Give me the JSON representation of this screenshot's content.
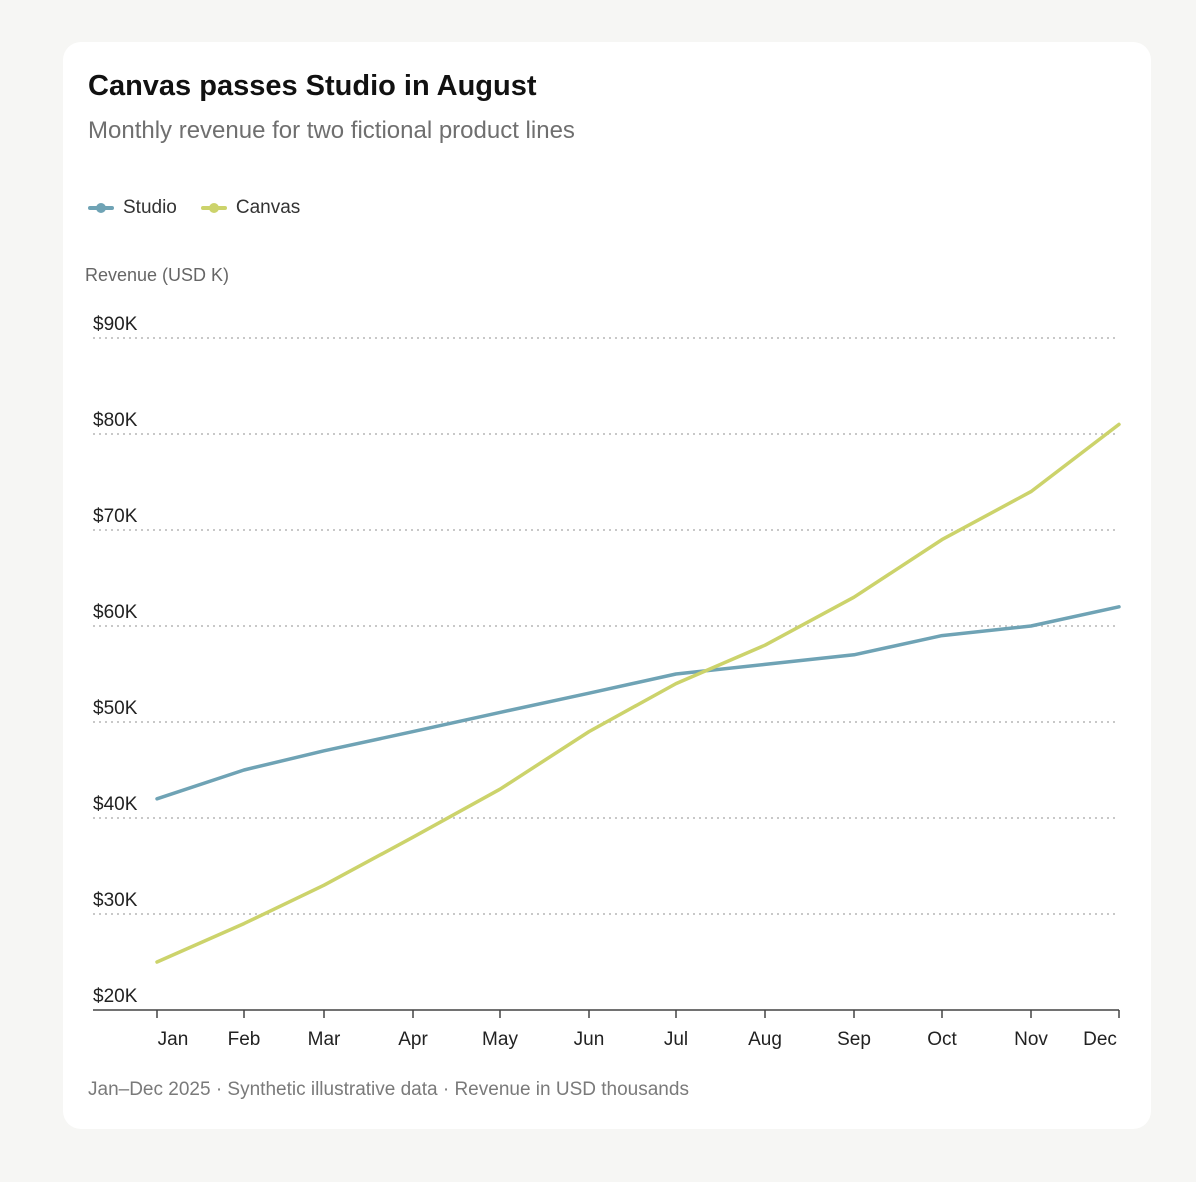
{
  "title": "Canvas passes Studio in August",
  "subtitle": "Monthly revenue for two fictional product lines",
  "footnote": "Jan–Dec 2025 · Synthetic illustrative data · Revenue in USD thousands",
  "colors": {
    "studio": "#6fa3b5",
    "canvas": "#ccd36b",
    "grid": "#b5b5b5",
    "axis": "#444444",
    "tick_text": "#222222",
    "label_text": "#666666"
  },
  "chart_data": {
    "type": "line",
    "ylabel": "Revenue (USD K)",
    "x": [
      "Jan",
      "Feb",
      "Mar",
      "Apr",
      "May",
      "Jun",
      "Jul",
      "Aug",
      "Sep",
      "Oct",
      "Nov",
      "Dec"
    ],
    "ylim": [
      20,
      90
    ],
    "yticks": [
      20,
      30,
      40,
      50,
      60,
      70,
      80,
      90
    ],
    "ytick_labels": [
      "$20K",
      "$30K",
      "$40K",
      "$50K",
      "$60K",
      "$70K",
      "$80K",
      "$90K"
    ],
    "grid": true,
    "legend_position": "top-left",
    "series": [
      {
        "name": "Studio",
        "color": "#6fa3b5",
        "values": [
          42,
          45,
          47,
          49,
          51,
          53,
          55,
          56,
          57,
          59,
          60,
          62
        ]
      },
      {
        "name": "Canvas",
        "color": "#ccd36b",
        "values": [
          25,
          29,
          33,
          38,
          43,
          49,
          54,
          58,
          63,
          69,
          74,
          81
        ]
      }
    ]
  }
}
